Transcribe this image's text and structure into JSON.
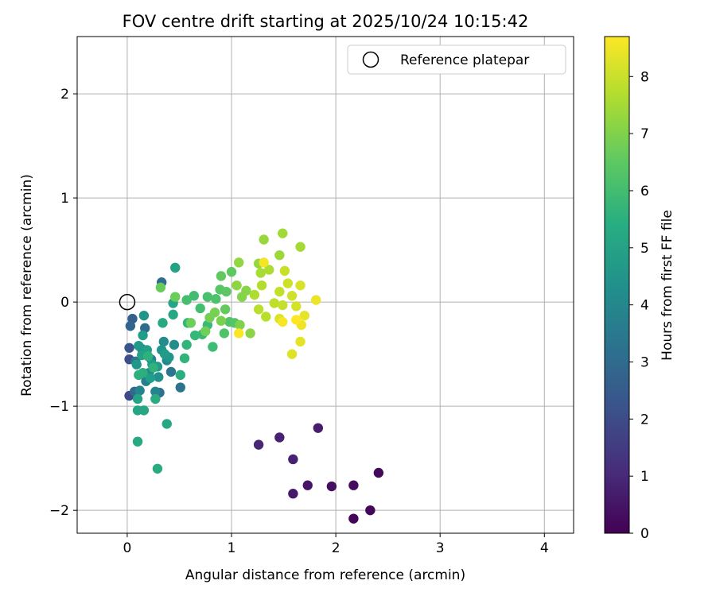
{
  "chart_data": {
    "type": "scatter",
    "title": "FOV centre drift starting at 2025/10/24 10:15:42",
    "xlabel": "Angular distance from reference (arcmin)",
    "ylabel": "Rotation from reference (arcmin)",
    "xlim": [
      -0.48,
      4.28
    ],
    "ylim": [
      -2.22,
      2.55
    ],
    "xticks": [
      0,
      1,
      2,
      3,
      4
    ],
    "yticks": [
      -2,
      -1,
      0,
      1,
      2
    ],
    "grid": true,
    "legend": {
      "location": "upper right",
      "entries": [
        "Reference platepar"
      ]
    },
    "colorbar": {
      "label": "Hours from first FF file",
      "colormap": "viridis",
      "min": 0,
      "max": 8.7,
      "ticks": [
        0,
        1,
        2,
        3,
        4,
        5,
        6,
        7,
        8
      ]
    },
    "reference_point": {
      "label": "Reference platepar",
      "x": 0,
      "y": 0
    },
    "points": [
      {
        "x": 2.17,
        "y": -2.08,
        "hours": 0.1
      },
      {
        "x": 2.33,
        "y": -2.0,
        "hours": 0.15
      },
      {
        "x": 2.41,
        "y": -1.64,
        "hours": 0.2
      },
      {
        "x": 2.17,
        "y": -1.76,
        "hours": 0.3
      },
      {
        "x": 1.96,
        "y": -1.77,
        "hours": 0.35
      },
      {
        "x": 1.73,
        "y": -1.76,
        "hours": 0.45
      },
      {
        "x": 1.59,
        "y": -1.84,
        "hours": 0.6
      },
      {
        "x": 1.83,
        "y": -1.21,
        "hours": 0.7
      },
      {
        "x": 1.59,
        "y": -1.51,
        "hours": 0.8
      },
      {
        "x": 1.46,
        "y": -1.3,
        "hours": 0.85
      },
      {
        "x": 1.26,
        "y": -1.37,
        "hours": 0.95
      },
      {
        "x": 0.02,
        "y": -0.9,
        "hours": 1.9
      },
      {
        "x": 0.02,
        "y": -0.55,
        "hours": 2.1
      },
      {
        "x": 0.02,
        "y": -0.44,
        "hours": 2.3
      },
      {
        "x": 0.05,
        "y": -0.16,
        "hours": 2.6
      },
      {
        "x": 0.03,
        "y": -0.23,
        "hours": 2.8
      },
      {
        "x": 0.07,
        "y": -0.86,
        "hours": 2.9
      },
      {
        "x": 0.17,
        "y": -0.25,
        "hours": 3.0
      },
      {
        "x": 0.33,
        "y": 0.19,
        "hours": 3.1
      },
      {
        "x": 0.31,
        "y": -0.87,
        "hours": 3.2
      },
      {
        "x": 0.51,
        "y": -0.82,
        "hours": 3.3
      },
      {
        "x": 0.42,
        "y": -0.67,
        "hours": 3.4
      },
      {
        "x": 0.08,
        "y": -0.57,
        "hours": 3.5
      },
      {
        "x": 0.14,
        "y": -0.45,
        "hours": 3.6
      },
      {
        "x": 0.18,
        "y": -0.76,
        "hours": 3.7
      },
      {
        "x": 0.23,
        "y": -0.55,
        "hours": 3.8
      },
      {
        "x": 0.27,
        "y": -0.86,
        "hours": 3.9
      },
      {
        "x": 0.12,
        "y": -0.85,
        "hours": 3.95
      },
      {
        "x": 0.21,
        "y": -0.68,
        "hours": 4.0
      },
      {
        "x": 0.38,
        "y": -0.56,
        "hours": 4.1
      },
      {
        "x": 0.35,
        "y": -0.38,
        "hours": 4.2
      },
      {
        "x": 0.45,
        "y": -0.41,
        "hours": 4.3
      },
      {
        "x": 0.3,
        "y": -0.72,
        "hours": 4.4
      },
      {
        "x": 0.16,
        "y": -0.13,
        "hours": 4.5
      },
      {
        "x": 0.09,
        "y": -0.6,
        "hours": 4.6
      },
      {
        "x": 0.11,
        "y": -0.42,
        "hours": 4.7
      },
      {
        "x": 0.15,
        "y": -0.32,
        "hours": 4.8
      },
      {
        "x": 0.19,
        "y": -0.46,
        "hours": 4.9
      },
      {
        "x": 0.24,
        "y": -0.6,
        "hours": 4.8
      },
      {
        "x": 0.33,
        "y": -0.46,
        "hours": 4.5
      },
      {
        "x": 0.29,
        "y": -0.62,
        "hours": 4.7
      },
      {
        "x": 0.4,
        "y": -0.53,
        "hours": 4.6
      },
      {
        "x": 0.36,
        "y": -0.5,
        "hours": 4.75
      },
      {
        "x": 0.22,
        "y": -0.73,
        "hours": 4.85
      },
      {
        "x": 0.14,
        "y": -0.51,
        "hours": 5.0
      },
      {
        "x": 0.1,
        "y": -0.93,
        "hours": 5.05
      },
      {
        "x": 0.1,
        "y": -1.04,
        "hours": 5.1
      },
      {
        "x": 0.16,
        "y": -1.04,
        "hours": 5.15
      },
      {
        "x": 0.38,
        "y": -1.17,
        "hours": 5.2
      },
      {
        "x": 0.1,
        "y": -1.34,
        "hours": 5.25
      },
      {
        "x": 0.29,
        "y": -1.6,
        "hours": 5.3
      },
      {
        "x": 0.27,
        "y": -0.93,
        "hours": 5.35
      },
      {
        "x": 0.46,
        "y": 0.33,
        "hours": 5.0
      },
      {
        "x": 0.44,
        "y": -0.01,
        "hours": 5.1
      },
      {
        "x": 0.44,
        "y": -0.12,
        "hours": 5.2
      },
      {
        "x": 0.34,
        "y": -0.2,
        "hours": 5.25
      },
      {
        "x": 0.51,
        "y": -0.7,
        "hours": 5.4
      },
      {
        "x": 0.15,
        "y": -0.68,
        "hours": 5.45
      },
      {
        "x": 0.11,
        "y": -0.7,
        "hours": 5.5
      },
      {
        "x": 0.2,
        "y": -0.52,
        "hours": 5.55
      },
      {
        "x": 0.25,
        "y": -0.63,
        "hours": 5.6
      },
      {
        "x": 0.55,
        "y": -0.54,
        "hours": 5.65
      },
      {
        "x": 0.57,
        "y": -0.41,
        "hours": 5.7
      },
      {
        "x": 0.58,
        "y": -0.2,
        "hours": 5.75
      },
      {
        "x": 0.65,
        "y": -0.32,
        "hours": 5.8
      },
      {
        "x": 0.72,
        "y": -0.31,
        "hours": 5.85
      },
      {
        "x": 0.77,
        "y": -0.22,
        "hours": 5.9
      },
      {
        "x": 0.82,
        "y": -0.43,
        "hours": 5.95
      },
      {
        "x": 0.64,
        "y": 0.06,
        "hours": 6.0
      },
      {
        "x": 0.7,
        "y": -0.06,
        "hours": 6.05
      },
      {
        "x": 0.57,
        "y": 0.02,
        "hours": 6.1
      },
      {
        "x": 0.77,
        "y": 0.05,
        "hours": 6.15
      },
      {
        "x": 0.85,
        "y": 0.03,
        "hours": 6.2
      },
      {
        "x": 0.93,
        "y": -0.3,
        "hours": 6.25
      },
      {
        "x": 0.98,
        "y": -0.19,
        "hours": 6.3
      },
      {
        "x": 1.03,
        "y": -0.2,
        "hours": 6.35
      },
      {
        "x": 0.89,
        "y": 0.12,
        "hours": 6.4
      },
      {
        "x": 0.95,
        "y": 0.1,
        "hours": 6.45
      },
      {
        "x": 1.0,
        "y": 0.29,
        "hours": 6.5
      },
      {
        "x": 0.9,
        "y": 0.25,
        "hours": 6.55
      },
      {
        "x": 0.94,
        "y": -0.07,
        "hours": 6.6
      },
      {
        "x": 0.32,
        "y": 0.14,
        "hours": 6.65
      },
      {
        "x": 0.46,
        "y": 0.05,
        "hours": 6.7
      },
      {
        "x": 0.61,
        "y": -0.2,
        "hours": 6.75
      },
      {
        "x": 0.75,
        "y": -0.28,
        "hours": 6.8
      },
      {
        "x": 0.79,
        "y": -0.15,
        "hours": 6.85
      },
      {
        "x": 0.84,
        "y": -0.1,
        "hours": 6.9
      },
      {
        "x": 0.9,
        "y": -0.18,
        "hours": 6.95
      },
      {
        "x": 1.08,
        "y": -0.22,
        "hours": 7.0
      },
      {
        "x": 1.1,
        "y": 0.05,
        "hours": 7.05
      },
      {
        "x": 1.14,
        "y": 0.11,
        "hours": 7.1
      },
      {
        "x": 1.18,
        "y": -0.3,
        "hours": 7.15
      },
      {
        "x": 1.05,
        "y": 0.16,
        "hours": 7.2
      },
      {
        "x": 1.07,
        "y": 0.38,
        "hours": 7.25
      },
      {
        "x": 1.26,
        "y": 0.37,
        "hours": 7.3
      },
      {
        "x": 1.31,
        "y": 0.6,
        "hours": 7.35
      },
      {
        "x": 1.46,
        "y": 0.45,
        "hours": 7.4
      },
      {
        "x": 1.49,
        "y": 0.66,
        "hours": 7.45
      },
      {
        "x": 1.66,
        "y": 0.53,
        "hours": 7.5
      },
      {
        "x": 1.28,
        "y": 0.28,
        "hours": 7.55
      },
      {
        "x": 1.36,
        "y": 0.31,
        "hours": 7.6
      },
      {
        "x": 1.22,
        "y": 0.07,
        "hours": 7.65
      },
      {
        "x": 1.29,
        "y": 0.16,
        "hours": 7.7
      },
      {
        "x": 1.33,
        "y": -0.14,
        "hours": 7.75
      },
      {
        "x": 1.26,
        "y": -0.07,
        "hours": 7.8
      },
      {
        "x": 1.41,
        "y": -0.01,
        "hours": 7.85
      },
      {
        "x": 1.46,
        "y": 0.1,
        "hours": 7.9
      },
      {
        "x": 1.49,
        "y": -0.03,
        "hours": 7.95
      },
      {
        "x": 1.51,
        "y": 0.3,
        "hours": 8.0
      },
      {
        "x": 1.54,
        "y": 0.18,
        "hours": 8.05
      },
      {
        "x": 1.58,
        "y": 0.06,
        "hours": 8.1
      },
      {
        "x": 1.62,
        "y": -0.04,
        "hours": 8.15
      },
      {
        "x": 1.66,
        "y": 0.16,
        "hours": 8.2
      },
      {
        "x": 1.46,
        "y": -0.16,
        "hours": 8.25
      },
      {
        "x": 1.58,
        "y": -0.5,
        "hours": 8.3
      },
      {
        "x": 1.66,
        "y": -0.38,
        "hours": 8.35
      },
      {
        "x": 1.7,
        "y": -0.13,
        "hours": 8.4
      },
      {
        "x": 1.81,
        "y": 0.02,
        "hours": 8.45
      },
      {
        "x": 1.67,
        "y": -0.22,
        "hours": 8.5
      },
      {
        "x": 1.31,
        "y": 0.38,
        "hours": 8.55
      },
      {
        "x": 1.49,
        "y": -0.19,
        "hours": 8.6
      },
      {
        "x": 1.07,
        "y": -0.3,
        "hours": 8.65
      },
      {
        "x": 1.62,
        "y": -0.17,
        "hours": 8.7
      }
    ]
  }
}
